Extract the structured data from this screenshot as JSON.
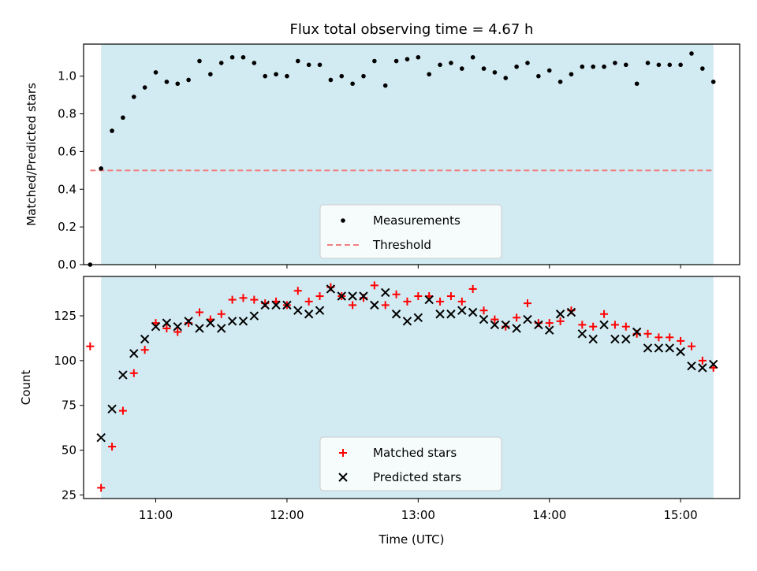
{
  "chart_data": [
    {
      "type": "scatter",
      "title": "Flux total observing time = 4.67 h",
      "xlabel": "",
      "ylabel": "Matched/Predicted stars",
      "xlim": [
        "10:27",
        "15:27"
      ],
      "ylim": [
        0,
        1.17
      ],
      "yticks": [
        "0.0",
        "0.2",
        "0.4",
        "0.6",
        "0.8",
        "1.0"
      ],
      "observing_span": [
        "10:35",
        "15:15"
      ],
      "legend_position": "lower-center",
      "threshold": {
        "name": "Threshold",
        "value": 0.5,
        "x_start": "10:30",
        "x_end": "15:15",
        "color": "#f08080",
        "style": "dashed"
      },
      "series": [
        {
          "name": "Measurements",
          "color": "#000000",
          "marker": "dot",
          "x": [
            "10:30",
            "10:35",
            "10:40",
            "10:45",
            "10:50",
            "10:55",
            "11:00",
            "11:05",
            "11:10",
            "11:15",
            "11:20",
            "11:25",
            "11:30",
            "11:35",
            "11:40",
            "11:45",
            "11:50",
            "11:55",
            "12:00",
            "12:05",
            "12:10",
            "12:15",
            "12:20",
            "12:25",
            "12:30",
            "12:35",
            "12:40",
            "12:45",
            "12:50",
            "12:55",
            "13:00",
            "13:05",
            "13:10",
            "13:15",
            "13:20",
            "13:25",
            "13:30",
            "13:35",
            "13:40",
            "13:45",
            "13:50",
            "13:55",
            "14:00",
            "14:05",
            "14:10",
            "14:15",
            "14:20",
            "14:25",
            "14:30",
            "14:35",
            "14:40",
            "14:45",
            "14:50",
            "14:55",
            "15:00",
            "15:05",
            "15:10",
            "15:15"
          ],
          "y": [
            0.0,
            0.51,
            0.71,
            0.78,
            0.89,
            0.94,
            1.02,
            0.97,
            0.96,
            0.98,
            1.08,
            1.01,
            1.07,
            1.1,
            1.1,
            1.07,
            1.0,
            1.01,
            1.0,
            1.08,
            1.06,
            1.06,
            0.98,
            1.0,
            0.96,
            1.0,
            1.08,
            0.95,
            1.08,
            1.09,
            1.1,
            1.01,
            1.06,
            1.07,
            1.04,
            1.1,
            1.04,
            1.02,
            0.99,
            1.05,
            1.07,
            1.0,
            1.03,
            0.97,
            1.01,
            1.05,
            1.05,
            1.05,
            1.07,
            1.06,
            0.96,
            1.07,
            1.06,
            1.06,
            1.06,
            1.12,
            1.04,
            0.97
          ]
        }
      ]
    },
    {
      "type": "scatter",
      "title": "",
      "xlabel": "Time (UTC)",
      "ylabel": "Count",
      "xlim": [
        "10:27",
        "15:27"
      ],
      "xticks": [
        "11:00",
        "12:00",
        "13:00",
        "14:00",
        "15:00"
      ],
      "ylim": [
        23,
        147
      ],
      "yticks": [
        "25",
        "50",
        "75",
        "100",
        "125"
      ],
      "observing_span": [
        "10:35",
        "15:15"
      ],
      "legend_position": "lower-center",
      "series": [
        {
          "name": "Matched stars",
          "color": "#ff0000",
          "marker": "plus",
          "x": [
            "10:30",
            "10:35",
            "10:40",
            "10:45",
            "10:50",
            "10:55",
            "11:00",
            "11:05",
            "11:10",
            "11:15",
            "11:20",
            "11:25",
            "11:30",
            "11:35",
            "11:40",
            "11:45",
            "11:50",
            "11:55",
            "12:00",
            "12:05",
            "12:10",
            "12:15",
            "12:20",
            "12:25",
            "12:30",
            "12:35",
            "12:40",
            "12:45",
            "12:50",
            "12:55",
            "13:00",
            "13:05",
            "13:10",
            "13:15",
            "13:20",
            "13:25",
            "13:30",
            "13:35",
            "13:40",
            "13:45",
            "13:50",
            "13:55",
            "14:00",
            "14:05",
            "14:10",
            "14:15",
            "14:20",
            "14:25",
            "14:30",
            "14:35",
            "14:40",
            "14:45",
            "14:50",
            "14:55",
            "15:00",
            "15:05",
            "15:10",
            "15:15"
          ],
          "y": [
            108,
            29,
            52,
            72,
            93,
            106,
            121,
            118,
            116,
            121,
            127,
            123,
            126,
            134,
            135,
            134,
            132,
            133,
            131,
            139,
            133,
            136,
            141,
            136,
            131,
            135,
            142,
            131,
            137,
            133,
            136,
            136,
            133,
            136,
            133,
            140,
            128,
            123,
            119,
            124,
            132,
            121,
            121,
            122,
            128,
            120,
            119,
            126,
            120,
            119,
            115,
            115,
            113,
            113,
            111,
            108,
            100,
            96
          ]
        },
        {
          "name": "Predicted stars",
          "color": "#000000",
          "marker": "x",
          "x": [
            "10:35",
            "10:40",
            "10:45",
            "10:50",
            "10:55",
            "11:00",
            "11:05",
            "11:10",
            "11:15",
            "11:20",
            "11:25",
            "11:30",
            "11:35",
            "11:40",
            "11:45",
            "11:50",
            "11:55",
            "12:00",
            "12:05",
            "12:10",
            "12:15",
            "12:20",
            "12:25",
            "12:30",
            "12:35",
            "12:40",
            "12:45",
            "12:50",
            "12:55",
            "13:00",
            "13:05",
            "13:10",
            "13:15",
            "13:20",
            "13:25",
            "13:30",
            "13:35",
            "13:40",
            "13:45",
            "13:50",
            "13:55",
            "14:00",
            "14:05",
            "14:10",
            "14:15",
            "14:20",
            "14:25",
            "14:30",
            "14:35",
            "14:40",
            "14:45",
            "14:50",
            "14:55",
            "15:00",
            "15:05",
            "15:10",
            "15:15"
          ],
          "y": [
            57,
            73,
            92,
            104,
            112,
            119,
            121,
            119,
            122,
            118,
            121,
            118,
            122,
            122,
            125,
            131,
            131,
            131,
            128,
            126,
            128,
            140,
            136,
            136,
            136,
            131,
            138,
            126,
            122,
            124,
            134,
            126,
            126,
            128,
            127,
            123,
            120,
            120,
            118,
            123,
            120,
            117,
            126,
            127,
            115,
            112,
            120,
            112,
            112,
            116,
            107,
            107,
            107,
            105,
            97,
            96,
            98
          ]
        }
      ]
    }
  ],
  "colors": {
    "observing_span": "#add8e6"
  }
}
